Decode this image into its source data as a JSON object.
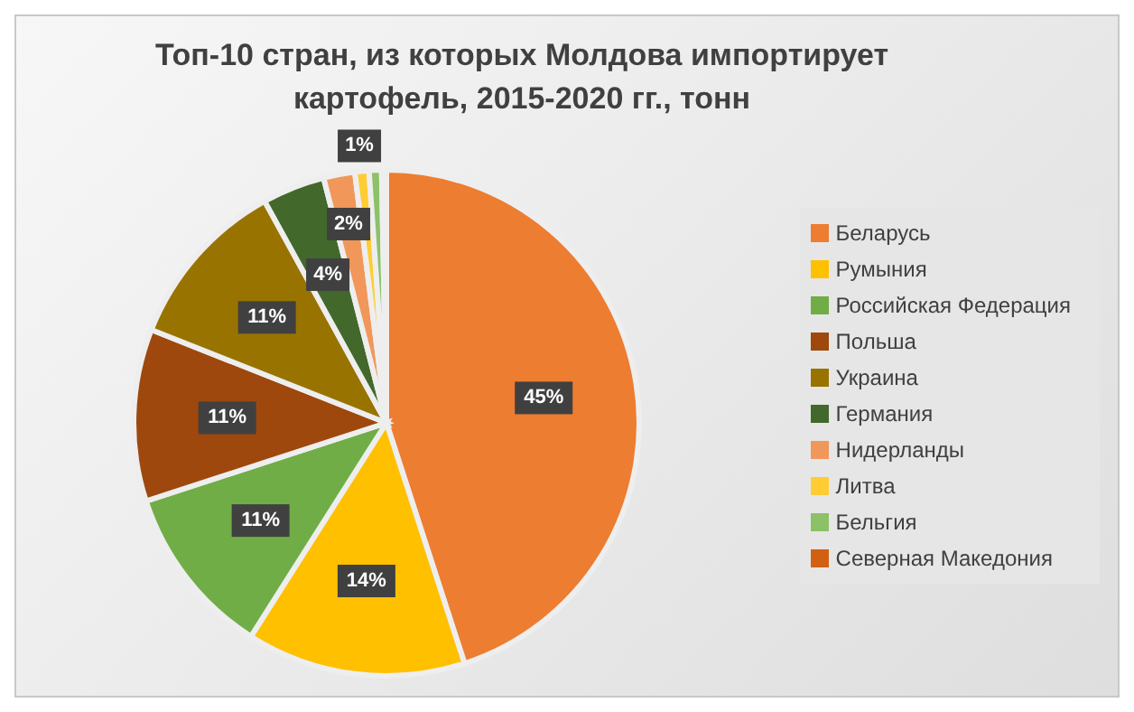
{
  "chart_data": {
    "type": "pie",
    "title": "Топ-10 стран, из которых Молдова импортирует картофель, 2015-2020 гг., тонн",
    "categories": [
      "Беларусь",
      "Румыния",
      "Российская Федерация",
      "Польша",
      "Украина",
      "Германия",
      "Нидерланды",
      "Литва",
      "Бельгия",
      "Северная Македония"
    ],
    "values": [
      45,
      14,
      11,
      11,
      11,
      4,
      2,
      0.9,
      0.8,
      0.3
    ],
    "value_labels": [
      "45%",
      "14%",
      "11%",
      "11%",
      "11%",
      "4%",
      "2%",
      "1%",
      null,
      null
    ],
    "colors": [
      "#ed7d31",
      "#ffc000",
      "#70ad47",
      "#9e480e",
      "#997300",
      "#43682b",
      "#f1975a",
      "#ffcd33",
      "#8cc168",
      "#d26012"
    ],
    "legend": "right"
  }
}
